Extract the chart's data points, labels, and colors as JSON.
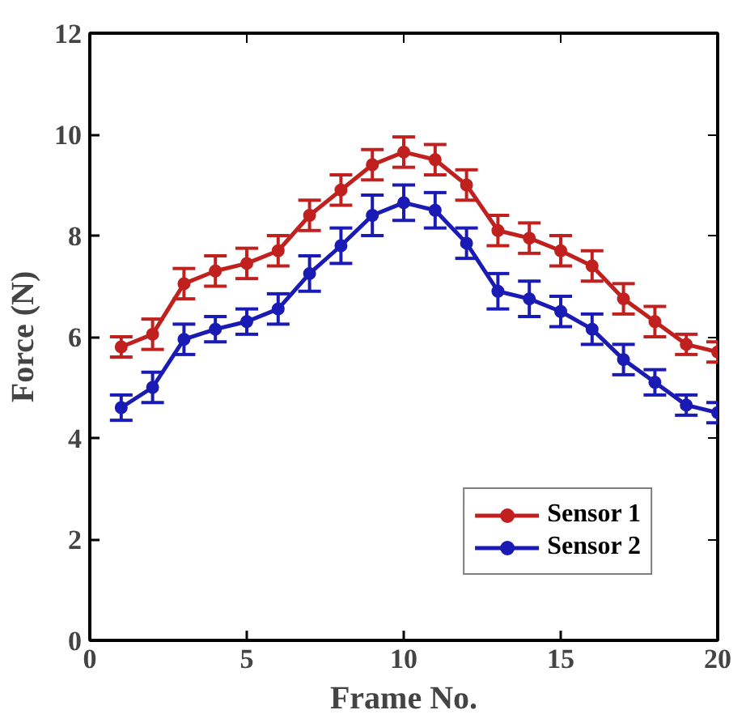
{
  "chart_data": {
    "type": "line",
    "xlabel": "Frame No.",
    "ylabel": "Force (N)",
    "x": [
      1,
      2,
      3,
      4,
      5,
      6,
      7,
      8,
      9,
      10,
      11,
      12,
      13,
      14,
      15,
      16,
      17,
      18,
      19,
      20
    ],
    "series": [
      {
        "name": "Sensor 1",
        "color": "#c0211f",
        "values": [
          5.8,
          6.05,
          7.05,
          7.3,
          7.45,
          7.7,
          8.4,
          8.9,
          9.4,
          9.65,
          9.5,
          9.0,
          8.1,
          7.95,
          7.7,
          7.4,
          6.75,
          6.3,
          5.85,
          5.7
        ],
        "errors": [
          0.2,
          0.3,
          0.3,
          0.3,
          0.3,
          0.3,
          0.3,
          0.3,
          0.3,
          0.3,
          0.3,
          0.3,
          0.3,
          0.3,
          0.3,
          0.3,
          0.3,
          0.3,
          0.2,
          0.2
        ]
      },
      {
        "name": "Sensor 2",
        "color": "#1a1ab4",
        "values": [
          4.6,
          5.0,
          5.95,
          6.15,
          6.3,
          6.55,
          7.25,
          7.8,
          8.4,
          8.65,
          8.5,
          7.85,
          6.9,
          6.75,
          6.5,
          6.15,
          5.55,
          5.1,
          4.65,
          4.5
        ],
        "errors": [
          0.25,
          0.3,
          0.3,
          0.25,
          0.25,
          0.3,
          0.35,
          0.35,
          0.4,
          0.35,
          0.35,
          0.3,
          0.35,
          0.35,
          0.3,
          0.3,
          0.3,
          0.25,
          0.2,
          0.2
        ]
      }
    ],
    "xlim": [
      0,
      20
    ],
    "xticks": [
      0,
      5,
      10,
      15,
      20
    ],
    "ylim": [
      0,
      12
    ],
    "yticks": [
      0,
      2,
      4,
      6,
      8,
      10,
      12
    ],
    "grid": false,
    "legend": "bottom right",
    "marker": "circle",
    "line_style": "solid"
  }
}
